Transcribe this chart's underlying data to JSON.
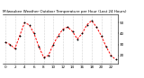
{
  "title": "Milwaukee Weather Outdoor Temperature per Hour (Last 24 Hours)",
  "hours": [
    0,
    1,
    2,
    3,
    4,
    5,
    6,
    7,
    8,
    9,
    10,
    11,
    12,
    13,
    14,
    15,
    16,
    17,
    18,
    19,
    20,
    21,
    22,
    23
  ],
  "temps": [
    32,
    30,
    26,
    38,
    50,
    48,
    40,
    28,
    18,
    20,
    30,
    38,
    44,
    46,
    42,
    35,
    40,
    48,
    52,
    46,
    38,
    28,
    20,
    16
  ],
  "line_color": "#ff0000",
  "marker_color": "#000000",
  "bg_color": "#ffffff",
  "ylim": [
    12,
    58
  ],
  "ytick_values": [
    20,
    30,
    40,
    50
  ],
  "ytick_labels": [
    "20",
    "30",
    "40",
    "50"
  ],
  "grid_color": "#aaaaaa",
  "title_fontsize": 3.0,
  "tick_fontsize": 3.0,
  "linewidth": 0.7,
  "markersize": 1.0,
  "grid_every": 2
}
